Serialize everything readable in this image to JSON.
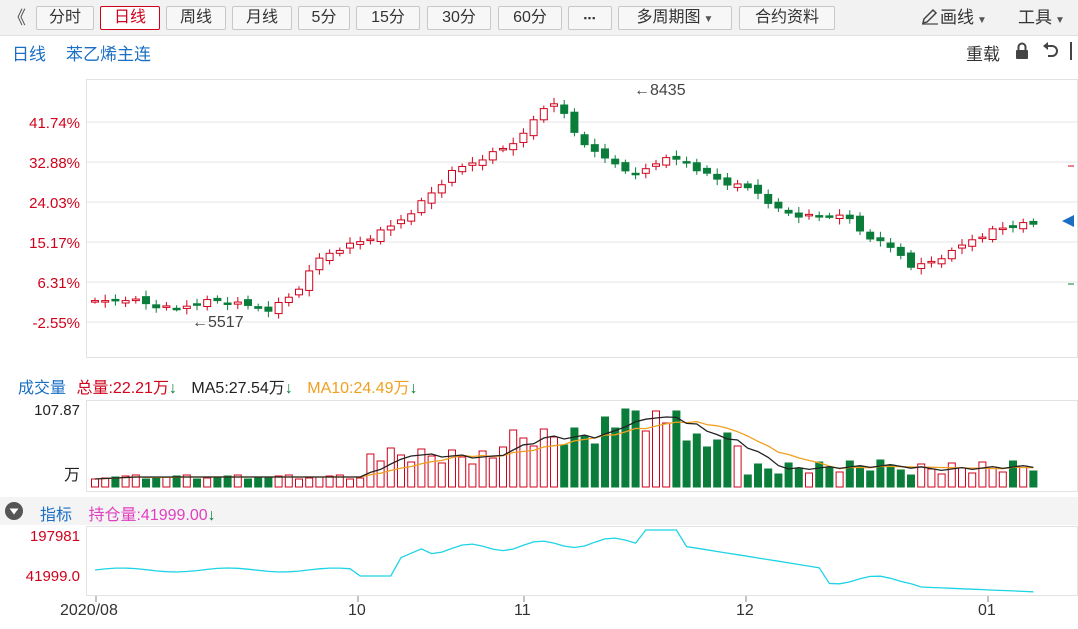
{
  "toolbar": {
    "back_glyph": "《",
    "tabs": [
      "分时",
      "日线",
      "周线",
      "月线",
      "5分",
      "15分",
      "30分",
      "60分"
    ],
    "active_tab": "日线",
    "more_label": "▪▪▪",
    "multi_period_label": "多周期图",
    "contract_info_label": "合约资料",
    "draw_label": "画线",
    "tools_label": "工具"
  },
  "header": {
    "period": "日线",
    "contract": "苯乙烯主连",
    "reload_label": "重载"
  },
  "price_chart": {
    "y_ticks": [
      "41.74%",
      "32.88%",
      "24.03%",
      "15.17%",
      "6.31%",
      "-2.55%"
    ],
    "high_annotation": "←8435",
    "low_annotation": "←5517",
    "colors": {
      "up": "#d0021b",
      "down": "#0a7d3b",
      "grid": "#e6e6e6"
    }
  },
  "volume": {
    "title": "成交量",
    "total_label": "总量:22.21万",
    "ma5_label": "MA5:27.54万",
    "ma10_label": "MA10:24.49万",
    "y_top": "107.87",
    "unit": "万",
    "colors": {
      "ma5": "#222222",
      "ma10": "#f0a020"
    }
  },
  "indicator": {
    "title": "指标",
    "oi_label": "持仓量:41999.00",
    "y_top": "197981",
    "y_bottom": "41999.0",
    "color": "#1ed3e6"
  },
  "x_axis": {
    "labels": [
      "2020/08",
      "10",
      "11",
      "12",
      "01"
    ]
  }
}
